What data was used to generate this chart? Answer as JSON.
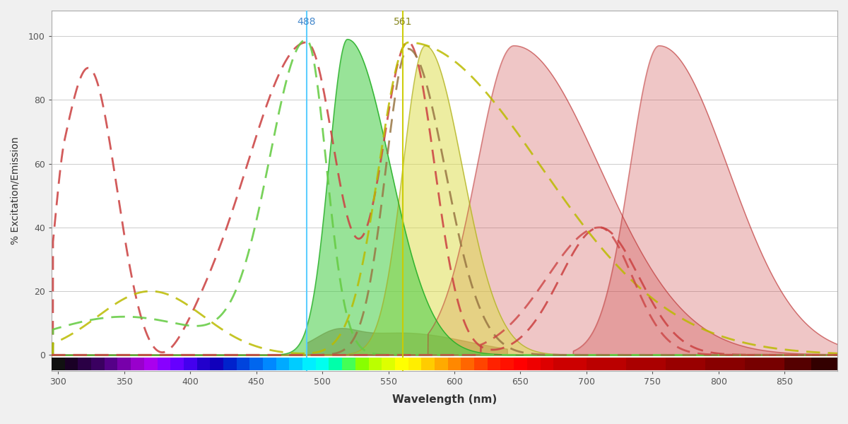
{
  "xlabel": "Wavelength (nm)",
  "ylabel": "% Excitation/Emission",
  "xlim": [
    295,
    890
  ],
  "ylim": [
    -5,
    108
  ],
  "x_ticks": [
    300,
    350,
    400,
    450,
    500,
    550,
    600,
    650,
    700,
    750,
    800,
    850
  ],
  "y_ticks": [
    0,
    20,
    40,
    60,
    80,
    100
  ],
  "laser_488": 488,
  "laser_561": 561,
  "laser_488_color": "#55ccff",
  "laser_561_color": "#cccc00",
  "background_color": "#f0f0f0",
  "plot_bg_color": "#ffffff",
  "grid_color": "#cccccc",
  "rainbow_stops": [
    [
      295,
      "#111111"
    ],
    [
      305,
      "#1a0025"
    ],
    [
      315,
      "#2a0045"
    ],
    [
      325,
      "#3a0060"
    ],
    [
      335,
      "#550088"
    ],
    [
      345,
      "#7700aa"
    ],
    [
      355,
      "#9900cc"
    ],
    [
      365,
      "#aa00ee"
    ],
    [
      375,
      "#8800ff"
    ],
    [
      385,
      "#6600ff"
    ],
    [
      395,
      "#4400ee"
    ],
    [
      405,
      "#2200cc"
    ],
    [
      415,
      "#1100bb"
    ],
    [
      425,
      "#0022cc"
    ],
    [
      435,
      "#0044dd"
    ],
    [
      445,
      "#0066ee"
    ],
    [
      455,
      "#0088ff"
    ],
    [
      465,
      "#00aaff"
    ],
    [
      475,
      "#00ccff"
    ],
    [
      485,
      "#00eeff"
    ],
    [
      495,
      "#00ffee"
    ],
    [
      505,
      "#00ffaa"
    ],
    [
      515,
      "#44ff55"
    ],
    [
      525,
      "#88ff00"
    ],
    [
      535,
      "#bbff00"
    ],
    [
      545,
      "#ddff00"
    ],
    [
      555,
      "#ffff00"
    ],
    [
      565,
      "#ffee00"
    ],
    [
      575,
      "#ffcc00"
    ],
    [
      585,
      "#ffaa00"
    ],
    [
      595,
      "#ff8800"
    ],
    [
      605,
      "#ff6600"
    ],
    [
      615,
      "#ff4400"
    ],
    [
      625,
      "#ff2200"
    ],
    [
      635,
      "#ff1100"
    ],
    [
      645,
      "#ff0000"
    ],
    [
      655,
      "#ee0000"
    ],
    [
      665,
      "#dd0000"
    ],
    [
      675,
      "#cc0000"
    ],
    [
      700,
      "#bb0000"
    ],
    [
      730,
      "#aa0000"
    ],
    [
      760,
      "#990000"
    ],
    [
      790,
      "#880000"
    ],
    [
      820,
      "#770000"
    ],
    [
      850,
      "#550000"
    ],
    [
      870,
      "#330000"
    ],
    [
      890,
      "#111111"
    ]
  ]
}
